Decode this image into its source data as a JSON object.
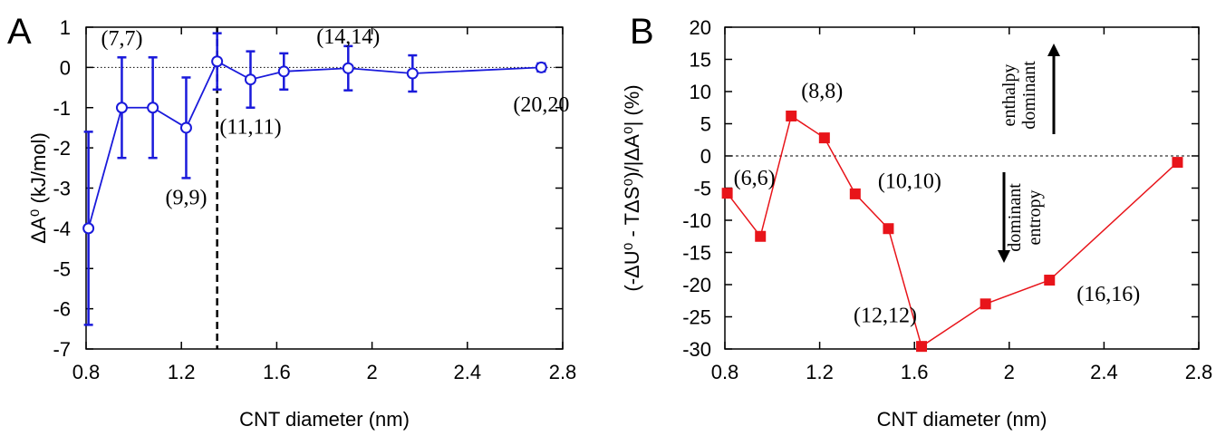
{
  "chart_data": [
    {
      "panel_label": "A",
      "type": "line",
      "xlabel": "CNT diameter (nm)",
      "ylabel": "ΔA⁰ (kJ/mol)",
      "xlim": [
        0.8,
        2.8
      ],
      "ylim": [
        -7,
        1
      ],
      "xticks": [
        "0.8",
        "1.2",
        "1.6",
        "2",
        "2.4",
        "2.8"
      ],
      "yticks": [
        "1",
        "0",
        "-1",
        "-2",
        "-3",
        "-4",
        "-5",
        "-6",
        "-7"
      ],
      "grid": false,
      "color": "#1a1adb",
      "marker": "open-circle",
      "reference_line_y": 0,
      "vertical_dashed_line_x": 1.35,
      "series": [
        {
          "x": [
            0.81,
            0.95,
            1.08,
            1.22,
            1.35,
            1.49,
            1.63,
            1.9,
            2.17,
            2.71
          ],
          "y": [
            -4.0,
            -1.0,
            -1.0,
            -1.5,
            0.15,
            -0.3,
            -0.1,
            -0.02,
            -0.15,
            0.0
          ],
          "error": [
            2.4,
            1.25,
            1.25,
            1.25,
            0.7,
            0.7,
            0.45,
            0.55,
            0.45,
            0.1
          ]
        }
      ],
      "annotations": [
        {
          "text": "(7,7)",
          "x": 0.95,
          "y": 0.55
        },
        {
          "text": "(9,9)",
          "x": 1.22,
          "y": -3.4
        },
        {
          "text": "(11,11)",
          "x": 1.49,
          "y": -1.65
        },
        {
          "text": "(14,14)",
          "x": 1.9,
          "y": 0.6
        },
        {
          "text": "(20,20",
          "x": 2.71,
          "y": -1.1
        }
      ]
    },
    {
      "panel_label": "B",
      "type": "line",
      "xlabel": "CNT diameter (nm)",
      "ylabel": "(-ΔU⁰ - TΔS⁰)/|ΔA⁰| (%)",
      "xlim": [
        0.8,
        2.8
      ],
      "ylim": [
        -30,
        20
      ],
      "xticks": [
        "0.8",
        "1.2",
        "1.6",
        "2",
        "2.4",
        "2.8"
      ],
      "yticks": [
        "20",
        "15",
        "10",
        "5",
        "0",
        "-5",
        "-10",
        "-15",
        "-20",
        "-25",
        "-30"
      ],
      "grid": false,
      "color": "#e8141a",
      "marker": "filled-square",
      "reference_line_y": 0,
      "series": [
        {
          "x": [
            0.81,
            0.95,
            1.08,
            1.22,
            1.35,
            1.49,
            1.63,
            1.9,
            2.17,
            2.71
          ],
          "y": [
            -5.8,
            -12.5,
            6.2,
            2.8,
            -5.9,
            -11.3,
            -29.6,
            -23.0,
            -19.3,
            -1.0
          ]
        }
      ],
      "annotations": [
        {
          "text": "(6,6)",
          "x": 0.81,
          "y": -4.5
        },
        {
          "text": "(8,8)",
          "x": 1.08,
          "y": 9.0
        },
        {
          "text": "(10,10)",
          "x": 1.35,
          "y": -5.0
        },
        {
          "text": "(12,12)",
          "x": 1.63,
          "y": -25.0
        },
        {
          "text": "(16,16)",
          "x": 2.17,
          "y": -22.5
        }
      ],
      "side_labels": {
        "up_1": "enthalpy",
        "up_2": "dominant",
        "down_1": "entropy",
        "down_2": "dominant"
      }
    }
  ]
}
